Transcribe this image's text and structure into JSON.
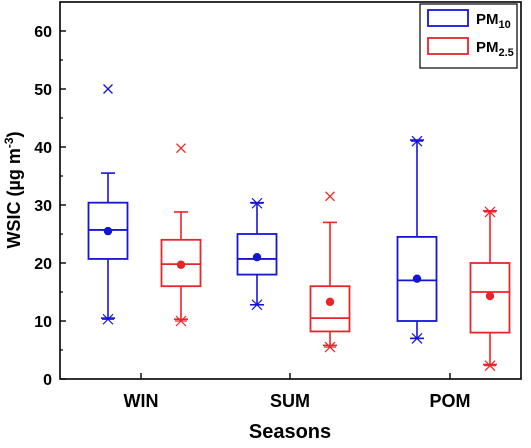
{
  "chart_data": {
    "type": "box",
    "xlabel": "Seasons",
    "ylabel": {
      "main": "WSIC (µg m",
      "sup": "-3",
      "close": ")"
    },
    "ylim": [
      0,
      65
    ],
    "yticks": [
      0,
      10,
      20,
      30,
      40,
      50,
      60
    ],
    "grid": false,
    "legend_position": "top-right",
    "categories": [
      "WIN",
      "SUM",
      "POM"
    ],
    "series": [
      {
        "key": "pm10",
        "name_base": "PM",
        "name_sub": "10",
        "color": "#1515d6",
        "boxes": [
          {
            "category": "WIN",
            "whisker_low": 10.5,
            "q1": 20.7,
            "median": 25.7,
            "q3": 30.4,
            "whisker_high": 35.5,
            "mean": 25.5,
            "outliers": [
              50.0
            ],
            "min_marker": 10.3,
            "max_marker": null
          },
          {
            "category": "SUM",
            "whisker_low": 12.8,
            "q1": 18.0,
            "median": 20.7,
            "q3": 25.0,
            "whisker_high": 30.4,
            "mean": 21.0,
            "outliers": [],
            "min_marker": 12.8,
            "max_marker": 30.3
          },
          {
            "category": "POM",
            "whisker_low": 7.0,
            "q1": 10.0,
            "median": 17.0,
            "q3": 24.5,
            "whisker_high": 41.2,
            "mean": 17.3,
            "outliers": [],
            "min_marker": 7.0,
            "max_marker": 41.0
          }
        ]
      },
      {
        "key": "pm25",
        "name_base": "PM",
        "name_sub": "2.5",
        "color": "#e8262a",
        "boxes": [
          {
            "category": "WIN",
            "whisker_low": 10.3,
            "q1": 16.0,
            "median": 19.8,
            "q3": 24.0,
            "whisker_high": 28.8,
            "mean": 19.7,
            "outliers": [
              39.8
            ],
            "min_marker": 10.0,
            "max_marker": null
          },
          {
            "category": "SUM",
            "whisker_low": 5.8,
            "q1": 8.2,
            "median": 10.5,
            "q3": 16.0,
            "whisker_high": 27.0,
            "mean": 13.3,
            "outliers": [
              31.5
            ],
            "min_marker": 5.5,
            "max_marker": null
          },
          {
            "category": "POM",
            "whisker_low": 2.5,
            "q1": 8.0,
            "median": 15.0,
            "q3": 20.0,
            "whisker_high": 29.0,
            "mean": 14.3,
            "outliers": [],
            "min_marker": 2.3,
            "max_marker": 28.8
          }
        ]
      }
    ]
  }
}
